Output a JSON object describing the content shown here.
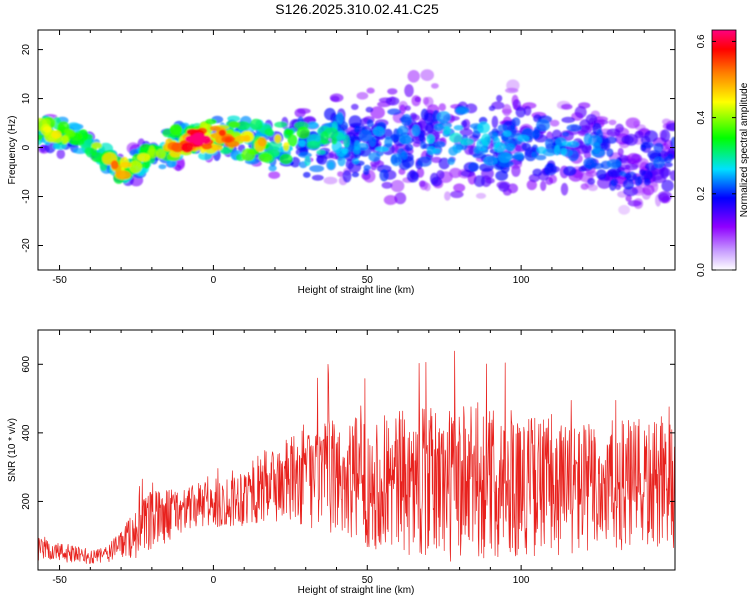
{
  "figure": {
    "title": "S126.2025.310.02.41.C25"
  },
  "colors": {
    "snr_line": "#e8211d",
    "axis": "#000000",
    "background": "#ffffff"
  },
  "chart_data": [
    {
      "type": "heatmap",
      "name": "spectrogram",
      "title": "S126.2025.310.02.41.C25",
      "xlabel": "Height of straight line (km)",
      "ylabel": "Frequency (Hz)",
      "xlim": [
        -57,
        150
      ],
      "ylim": [
        -25,
        24
      ],
      "xticks": [
        -50,
        0,
        50,
        100
      ],
      "yticks": [
        -20,
        -10,
        0,
        10,
        20
      ],
      "xtick_labels": [
        "-50",
        "0",
        "50",
        "100"
      ],
      "ytick_labels": [
        "-20",
        "-10",
        "0",
        "10",
        "20"
      ],
      "colorbar": {
        "label": "Normalized spectral amplitude",
        "range": [
          0.0,
          0.63
        ],
        "ticks": [
          0.0,
          0.2,
          0.4,
          0.6
        ],
        "tick_labels": [
          "0.0",
          "0.2",
          "0.4",
          "0.6"
        ],
        "colormap": [
          "#ffffff",
          "#8f00ff",
          "#0000ff",
          "#00e0ff",
          "#00ff00",
          "#ffff00",
          "#ff7f00",
          "#ff0000",
          "#ff0080"
        ]
      },
      "ridge": {
        "x": [
          -57,
          -45,
          -38,
          -30,
          -25,
          -15,
          -5,
          5,
          15,
          30,
          45,
          60,
          80,
          100,
          120,
          135,
          150
        ],
        "freq": [
          4,
          2,
          0,
          -5,
          -3,
          0,
          2,
          2,
          1,
          1,
          1,
          1,
          2,
          1,
          0,
          -4,
          -2
        ],
        "amplitude": [
          0.35,
          0.3,
          0.3,
          0.45,
          0.3,
          0.35,
          0.55,
          0.4,
          0.35,
          0.28,
          0.2,
          0.18,
          0.2,
          0.18,
          0.18,
          0.15,
          0.15
        ],
        "spread_hz": [
          3,
          3,
          3,
          2,
          3,
          4,
          3,
          4,
          5,
          6,
          8,
          10,
          10,
          9,
          8,
          8,
          8
        ]
      }
    },
    {
      "type": "line",
      "name": "snr",
      "xlabel": "Height of straight line (km)",
      "ylabel": "SNR (10 * v/v)",
      "xlim": [
        -57,
        150
      ],
      "ylim": [
        0,
        700
      ],
      "xticks": [
        -50,
        0,
        50,
        100
      ],
      "yticks": [
        200,
        400,
        600
      ],
      "xtick_labels": [
        "-50",
        "0",
        "50",
        "100"
      ],
      "ytick_labels": [
        "200",
        "400",
        "600"
      ],
      "envelope": {
        "x": [
          -57,
          -45,
          -40,
          -35,
          -30,
          -25,
          -20,
          -15,
          -10,
          -5,
          0,
          10,
          20,
          30,
          40,
          50,
          60,
          70,
          80,
          90,
          100,
          110,
          120,
          130,
          140,
          150
        ],
        "mean": [
          60,
          45,
          35,
          45,
          80,
          110,
          140,
          160,
          175,
          185,
          190,
          220,
          250,
          270,
          270,
          260,
          255,
          255,
          250,
          255,
          250,
          245,
          240,
          245,
          245,
          240
        ],
        "noise": [
          25,
          20,
          15,
          20,
          35,
          60,
          70,
          60,
          50,
          50,
          55,
          70,
          90,
          110,
          130,
          150,
          160,
          170,
          180,
          170,
          160,
          160,
          150,
          150,
          150,
          140
        ],
        "max": [
          100,
          80,
          70,
          70,
          110,
          250,
          370,
          300,
          260,
          270,
          290,
          340,
          420,
          510,
          670,
          560,
          640,
          650,
          695,
          620,
          610,
          600,
          600,
          620,
          620,
          520
        ]
      },
      "sample_count": 1400
    }
  ]
}
